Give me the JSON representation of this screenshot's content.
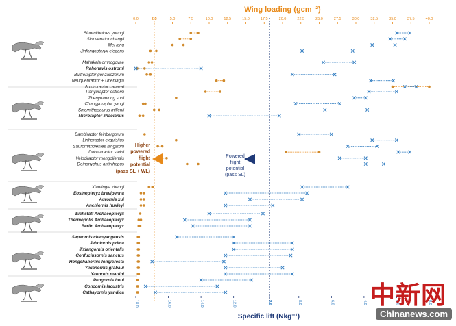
{
  "colors": {
    "orange": "#e88a1a",
    "orange_dot": "#d08a2c",
    "blue": "#2f7bc0",
    "blue_dark": "#1f3a78",
    "divider": "#bbbbbb",
    "label": "#222222",
    "watermark_red": "#c51d1d",
    "watermark_bg": "#6d6d6d"
  },
  "watermark": {
    "logo": "中新网",
    "site": "Chinanews.com"
  },
  "annotations": {
    "orange": [
      "Higher",
      "powered",
      "flight",
      "potential",
      "(pass SL + WL)"
    ],
    "blue": [
      "Powered",
      "flight",
      "potential",
      "(pass SL)"
    ]
  },
  "chart_data": {
    "type": "scatter",
    "subtype": "dumbbell",
    "title": "",
    "top_axis": {
      "label": "Wing loading (gcm⁻²)",
      "range": [
        0,
        40
      ],
      "ticks": [
        "0.0",
        "2.5",
        "5.0",
        "7.5",
        "10.0",
        "12.5",
        "15.0",
        "17.5",
        "20.0",
        "22.5",
        "25.0",
        "27.5",
        "30.0",
        "32.5",
        "35.0",
        "37.5",
        "40.0"
      ],
      "threshold": 2.5
    },
    "bottom_axis": {
      "label": "Specific lift (Nkg⁻¹)",
      "range": [
        18,
        0
      ],
      "ticks": [
        "18.0",
        "16.0",
        "14.0",
        "12.0",
        "9.8",
        "8.0",
        "6.0",
        "4.0",
        "2.0",
        "0.0"
      ],
      "threshold": 9.8
    },
    "taxa": [
      {
        "name": "Sinornithoides youngi",
        "bold": false,
        "wl": [
          7.5,
          8.5
        ],
        "sl": [
          2.0,
          1.2
        ]
      },
      {
        "name": "Sinovenator changii",
        "bold": false,
        "wl": [
          6.0,
          7.5
        ],
        "sl": [
          2.4,
          1.5
        ]
      },
      {
        "name": "Mei long",
        "bold": false,
        "wl": [
          5.0,
          6.5
        ],
        "sl": [
          3.5,
          2.1
        ]
      },
      {
        "name": "Jinfengopteryx elegans",
        "bold": false,
        "wl": [
          2.0,
          2.8
        ],
        "sl": [
          7.8,
          4.7
        ]
      },
      {
        "name": "Mahakala omnogovae",
        "bold": false,
        "wl": [
          1.8,
          2.2
        ],
        "sl": [
          6.5,
          4.6
        ]
      },
      {
        "name": "Rahonavis ostromi",
        "bold": true,
        "wl": [
          0.2,
          1.2
        ],
        "sl": [
          18.0,
          14.0
        ]
      },
      {
        "name": "Buitreraptor gonzalezorum",
        "bold": false,
        "wl": [
          1.5,
          2.0
        ],
        "sl": [
          8.4,
          5.8
        ]
      },
      {
        "name": "Neuquenraptor + Unenlagia",
        "bold": false,
        "wl": [
          11.0,
          12.0
        ],
        "sl": [
          3.6,
          2.2
        ]
      },
      {
        "name": "Austroraptor cabazai",
        "bold": false,
        "wl": [
          35.0,
          40.0
        ],
        "sl": [
          1.5,
          0.8
        ]
      },
      {
        "name": "Tianyuraptor ostromi",
        "bold": false,
        "wl": [
          9.5,
          11.5
        ],
        "sl": [
          3.7,
          2.0
        ]
      },
      {
        "name": "Zhenyuanlong suni",
        "bold": false,
        "wl": [
          5.5,
          5.5
        ],
        "sl": [
          4.6,
          3.9
        ]
      },
      {
        "name": "Changyuraptor yangi",
        "bold": false,
        "wl": [
          1.0,
          1.3
        ],
        "sl": [
          8.2,
          5.5
        ]
      },
      {
        "name": "Sinornithosaurus millenii",
        "bold": false,
        "wl": [
          2.5,
          3.2
        ],
        "sl": [
          6.4,
          3.8
        ]
      },
      {
        "name": "Microraptor zhaoianus",
        "bold": true,
        "wl": [
          0.5,
          1.0
        ],
        "sl": [
          13.5,
          9.2
        ]
      },
      {
        "name": "Bambiraptor feinbergorum",
        "bold": false,
        "wl": [
          1.2,
          1.2
        ],
        "sl": [
          8.0,
          6.0
        ]
      },
      {
        "name": "Linheraptor exquisitus",
        "bold": false,
        "wl": [
          5.5,
          5.5
        ],
        "sl": [
          3.5,
          2.0
        ]
      },
      {
        "name": "Saurornitholestes langstoni",
        "bold": false,
        "wl": [
          3.0,
          3.6
        ],
        "sl": [
          5.0,
          3.2
        ]
      },
      {
        "name": "Dakotaraptor steini",
        "bold": false,
        "wl": [
          20.5,
          25.0
        ],
        "sl": [
          1.9,
          1.2
        ]
      },
      {
        "name": "Velociraptor mongoliensis",
        "bold": false,
        "wl": [
          3.5,
          4.2
        ],
        "sl": [
          5.5,
          3.9
        ]
      },
      {
        "name": "Deinonychus antirrhopus",
        "bold": false,
        "wl": [
          7.0,
          8.5
        ],
        "sl": [
          3.9,
          2.8
        ]
      },
      {
        "name": "Xiaotingia zhengi",
        "bold": false,
        "wl": [
          1.8,
          2.3
        ],
        "sl": [
          7.8,
          5.0
        ]
      },
      {
        "name": "Eosinopteryx brevipenna",
        "bold": true,
        "wl": [
          0.7,
          1.1
        ],
        "sl": [
          12.5,
          7.5
        ]
      },
      {
        "name": "Aurornis xui",
        "bold": true,
        "wl": [
          0.7,
          1.1
        ],
        "sl": [
          11.0,
          7.8
        ]
      },
      {
        "name": "Anchiornis huxleyi",
        "bold": true,
        "wl": [
          0.7,
          1.1
        ],
        "sl": [
          12.5,
          9.6
        ]
      },
      {
        "name": "Eichstätt Archaeopteryx",
        "bold": true,
        "wl": [
          0.6,
          0.6
        ],
        "sl": [
          13.5,
          10.2
        ]
      },
      {
        "name": "Thermopolis Archaeopteryx",
        "bold": true,
        "wl": [
          0.4,
          0.7
        ],
        "sl": [
          15.0,
          11.0
        ]
      },
      {
        "name": "Berlin Archaeopteryx",
        "bold": true,
        "wl": [
          0.4,
          0.6
        ],
        "sl": [
          14.5,
          11.0
        ]
      },
      {
        "name": "Sapeornis chaoyangensis",
        "bold": true,
        "wl": [
          0.3,
          0.4
        ],
        "sl": [
          15.5,
          12.0
        ]
      },
      {
        "name": "Jeholornis prima",
        "bold": true,
        "wl": [
          0.3,
          0.4
        ],
        "sl": [
          12.0,
          8.4
        ]
      },
      {
        "name": "Jixiangornis orientalis",
        "bold": true,
        "wl": [
          0.3,
          0.4
        ],
        "sl": [
          12.0,
          8.4
        ]
      },
      {
        "name": "Confuciusornis sanctus",
        "bold": true,
        "wl": [
          0.3,
          0.4
        ],
        "sl": [
          12.5,
          8.5
        ]
      },
      {
        "name": "Hongshanornis longicresta",
        "bold": true,
        "wl": [
          0.3,
          0.4
        ],
        "sl": [
          17.0,
          12.6
        ]
      },
      {
        "name": "Yixianornis grabaui",
        "bold": true,
        "wl": [
          0.3,
          0.4
        ],
        "sl": [
          12.5,
          9.0
        ]
      },
      {
        "name": "Yanornis martini",
        "bold": true,
        "wl": [
          0.3,
          0.4
        ],
        "sl": [
          12.5,
          8.4
        ]
      },
      {
        "name": "Pengornis houi",
        "bold": true,
        "wl": [
          0.2,
          0.3
        ],
        "sl": [
          14.0,
          10.9
        ]
      },
      {
        "name": "Concornis lacustris",
        "bold": true,
        "wl": [
          0.2,
          0.3
        ],
        "sl": [
          17.4,
          13.0
        ]
      },
      {
        "name": "Cathayornis yandica",
        "bold": true,
        "wl": [
          0.2,
          0.3
        ],
        "sl": [
          16.8,
          12.5
        ]
      }
    ]
  }
}
